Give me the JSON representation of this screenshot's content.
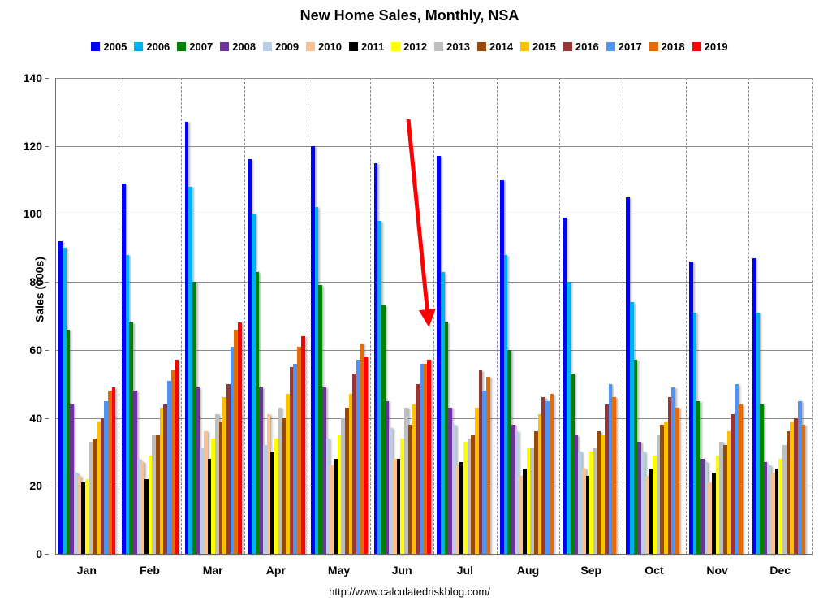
{
  "title": "New Home Sales, Monthly, NSA",
  "y_axis_title": "Sales (000s)",
  "watermark": "http://www.calculatedriskblog.com/",
  "chart_data": {
    "type": "bar",
    "title": "New Home Sales, Monthly, NSA",
    "xlabel": "",
    "ylabel": "Sales (000s)",
    "ylim": [
      0,
      140
    ],
    "yticks": [
      0,
      20,
      40,
      60,
      80,
      100,
      120,
      140
    ],
    "grid": {
      "horizontal": "solid",
      "vertical": "dashed between month clusters"
    },
    "legend_position": "top",
    "categories": [
      "Jan",
      "Feb",
      "Mar",
      "Apr",
      "May",
      "Jun",
      "Jul",
      "Aug",
      "Sep",
      "Oct",
      "Nov",
      "Dec"
    ],
    "series": [
      {
        "name": "2005",
        "color": "#0000FF",
        "values": [
          92,
          109,
          127,
          116,
          120,
          115,
          117,
          110,
          99,
          105,
          86,
          87
        ]
      },
      {
        "name": "2006",
        "color": "#00B0F0",
        "values": [
          90,
          88,
          108,
          100,
          102,
          98,
          83,
          88,
          80,
          74,
          71,
          71
        ]
      },
      {
        "name": "2007",
        "color": "#008000",
        "values": [
          66,
          68,
          80,
          83,
          79,
          73,
          68,
          60,
          53,
          57,
          45,
          44
        ]
      },
      {
        "name": "2008",
        "color": "#7030A0",
        "values": [
          44,
          48,
          49,
          49,
          49,
          45,
          43,
          38,
          35,
          33,
          28,
          27
        ]
      },
      {
        "name": "2009",
        "color": "#B9CDE5",
        "values": [
          24,
          28,
          31,
          32,
          34,
          37,
          38,
          36,
          30,
          30,
          27,
          26
        ]
      },
      {
        "name": "2010",
        "color": "#FAC090",
        "values": [
          23,
          27,
          36,
          41,
          26,
          28,
          26,
          23,
          25,
          23,
          21,
          24
        ]
      },
      {
        "name": "2011",
        "color": "#000000",
        "values": [
          21,
          22,
          28,
          30,
          28,
          28,
          27,
          25,
          23,
          25,
          24,
          25
        ]
      },
      {
        "name": "2012",
        "color": "#FFFF00",
        "values": [
          22,
          29,
          34,
          34,
          35,
          34,
          33,
          31,
          30,
          29,
          29,
          28
        ]
      },
      {
        "name": "2013",
        "color": "#BFBFBF",
        "values": [
          33,
          35,
          41,
          43,
          40,
          43,
          34,
          31,
          31,
          35,
          33,
          32
        ]
      },
      {
        "name": "2014",
        "color": "#984807",
        "values": [
          34,
          35,
          39,
          40,
          43,
          38,
          35,
          36,
          36,
          38,
          32,
          36
        ]
      },
      {
        "name": "2015",
        "color": "#FFC000",
        "values": [
          39,
          43,
          46,
          47,
          47,
          44,
          43,
          41,
          35,
          39,
          36,
          39
        ]
      },
      {
        "name": "2016",
        "color": "#953735",
        "values": [
          40,
          44,
          50,
          55,
          53,
          50,
          54,
          46,
          44,
          46,
          41,
          40
        ]
      },
      {
        "name": "2017",
        "color": "#4F94F4",
        "values": [
          45,
          51,
          61,
          56,
          57,
          56,
          48,
          45,
          50,
          49,
          50,
          45
        ]
      },
      {
        "name": "2018",
        "color": "#E36C09",
        "values": [
          48,
          54,
          66,
          61,
          62,
          56,
          52,
          47,
          46,
          43,
          44,
          38
        ]
      },
      {
        "name": "2019",
        "color": "#FF0000",
        "values": [
          49,
          57,
          68,
          64,
          58,
          57,
          null,
          null,
          null,
          null,
          null,
          null
        ]
      }
    ],
    "annotation": {
      "type": "arrow",
      "color": "#FF0000",
      "description": "thick red arrow pointing down-right at the June 2019 bar"
    }
  }
}
